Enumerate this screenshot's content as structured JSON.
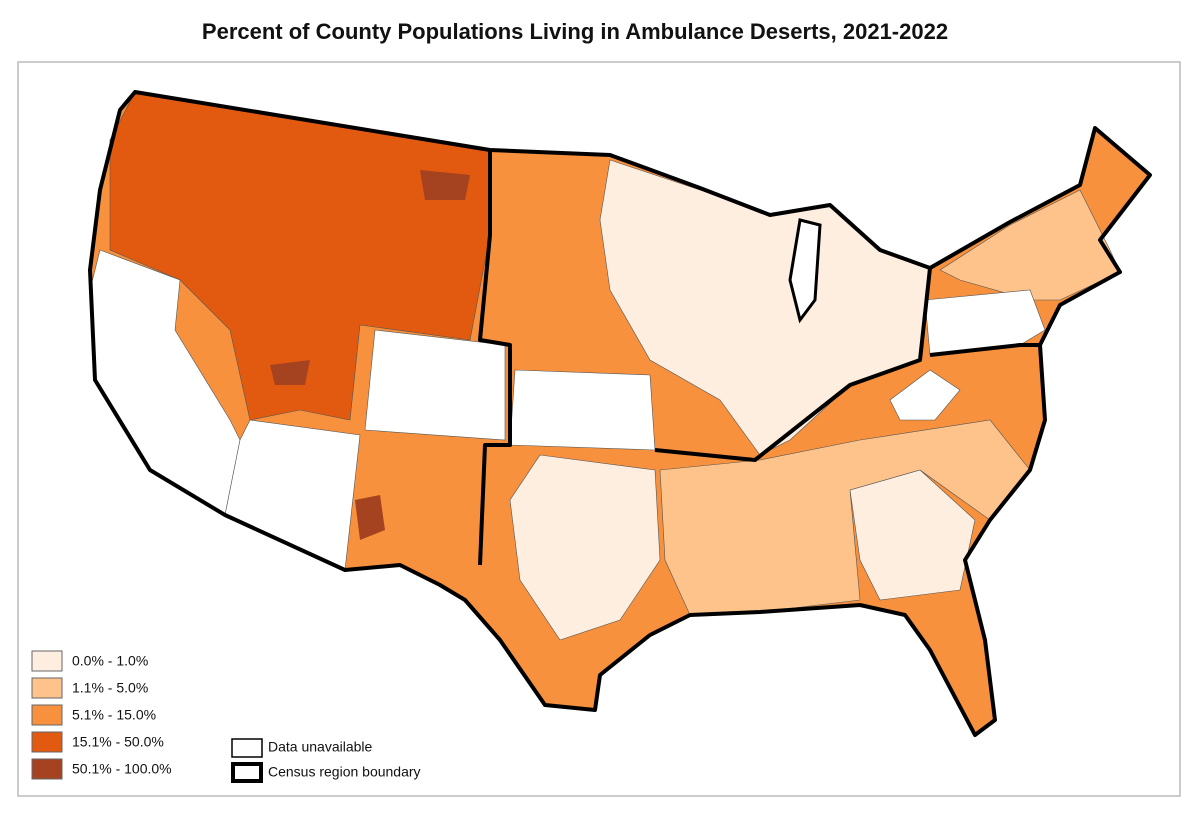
{
  "title": "Percent of County Populations Living in Ambulance Deserts, 2021-2022",
  "legend": {
    "classes": [
      {
        "label": "0.0% - 1.0%",
        "color": "#fdeee0"
      },
      {
        "label": "1.1% - 5.0%",
        "color": "#fdc38a"
      },
      {
        "label": "5.1% - 15.0%",
        "color": "#f7913d"
      },
      {
        "label": "15.1% - 50.0%",
        "color": "#e25a0f"
      },
      {
        "label": "50.1% - 100.0%",
        "color": "#a5421f"
      }
    ],
    "unavailable": "Data unavailable",
    "boundary": "Census region boundary"
  }
}
